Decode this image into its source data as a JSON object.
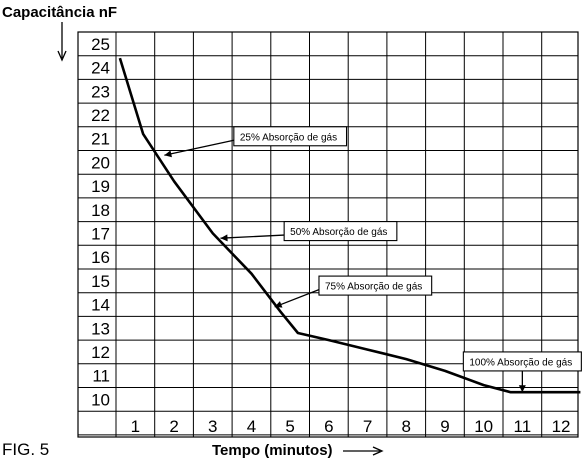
{
  "chart_data": {
    "type": "line",
    "ylabel": "Capacitância nF",
    "xlabel": "Tempo (minutos)",
    "figure_label": "FIG. 5",
    "x_ticks": [
      "1",
      "2",
      "3",
      "4",
      "5",
      "6",
      "7",
      "8",
      "9",
      "10",
      "11",
      "12"
    ],
    "y_ticks": [
      "10",
      "11",
      "12",
      "13",
      "14",
      "15",
      "16",
      "17",
      "18",
      "19",
      "20",
      "21",
      "22",
      "23",
      "24",
      "25"
    ],
    "xlim": [
      0.5,
      12.5
    ],
    "ylim": [
      9.5,
      25.5
    ],
    "grid": true,
    "series": [
      {
        "x": [
          0.6,
          1.2,
          2.0,
          3.0,
          4.0,
          4.75,
          5.2,
          6.0,
          7.0,
          8.0,
          9.0,
          10.0,
          10.7,
          11.0,
          11.5,
          12.5
        ],
        "y": [
          24.4,
          21.2,
          19.2,
          17.0,
          15.3,
          13.7,
          12.8,
          12.5,
          12.1,
          11.7,
          11.2,
          10.6,
          10.3,
          10.3,
          10.3,
          10.3
        ]
      }
    ],
    "annotations": [
      {
        "text": "25% Absorção de gás",
        "point": [
          1.75,
          20.3
        ],
        "box_anchor": [
          3.7,
          21.1
        ]
      },
      {
        "text": "50% Absorção de gás",
        "point": [
          3.2,
          16.8
        ],
        "box_anchor": [
          5.0,
          17.1
        ]
      },
      {
        "text": "75% Absorção de gás",
        "point": [
          4.6,
          13.9
        ],
        "box_anchor": [
          5.9,
          14.8
        ]
      },
      {
        "text": "100% Absorção de gás",
        "point": [
          11.0,
          10.3
        ],
        "box_anchor": [
          11.0,
          11.6
        ]
      }
    ]
  }
}
